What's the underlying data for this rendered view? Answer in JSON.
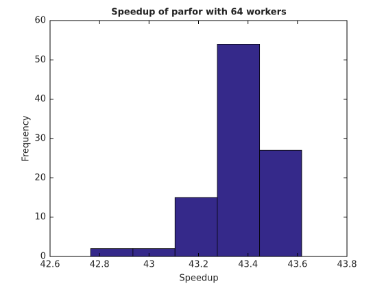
{
  "chart_data": {
    "type": "histogram",
    "title": "Speedup of parfor with 64 workers",
    "x_label": "Speedup",
    "y_label": "Frequency",
    "bins": [
      42.764,
      42.935,
      43.105,
      43.276,
      43.447,
      43.617
    ],
    "values": [
      2,
      2,
      15,
      54,
      27
    ],
    "color": "#35298a",
    "xlim": [
      42.6,
      43.8
    ],
    "xticks": [
      42.6,
      42.8,
      43,
      43.2,
      43.4,
      43.6,
      43.8
    ],
    "ylim": [
      0,
      60
    ],
    "yticks": [
      0,
      10,
      20,
      30,
      40,
      50,
      60
    ]
  }
}
